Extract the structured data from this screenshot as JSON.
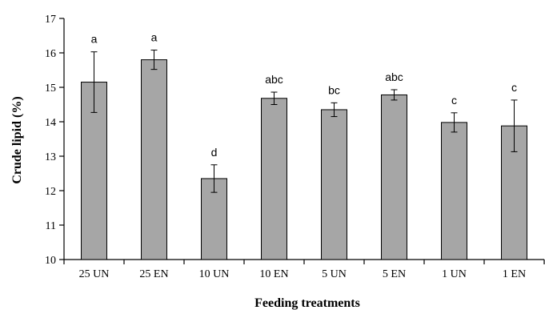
{
  "chart_data": {
    "type": "bar",
    "title": "",
    "xlabel": "Feeding treatments",
    "ylabel": "Crude lipid (%)",
    "ylim": [
      10,
      17
    ],
    "yticks": [
      10,
      11,
      12,
      13,
      14,
      15,
      16,
      17
    ],
    "grid": false,
    "categories": [
      "25 UN",
      "25 EN",
      "10 UN",
      "10 EN",
      "5 UN",
      "5 EN",
      "1 UN",
      "1 EN"
    ],
    "values": [
      15.15,
      15.8,
      12.35,
      14.68,
      14.35,
      14.78,
      13.98,
      13.88
    ],
    "error": [
      0.88,
      0.28,
      0.4,
      0.18,
      0.2,
      0.15,
      0.28,
      0.75
    ],
    "labels": [
      "a",
      "a",
      "d",
      "abc",
      "bc",
      "abc",
      "c",
      "c"
    ],
    "colors": {
      "bar": "#a6a6a6",
      "stroke": "#000000"
    }
  }
}
